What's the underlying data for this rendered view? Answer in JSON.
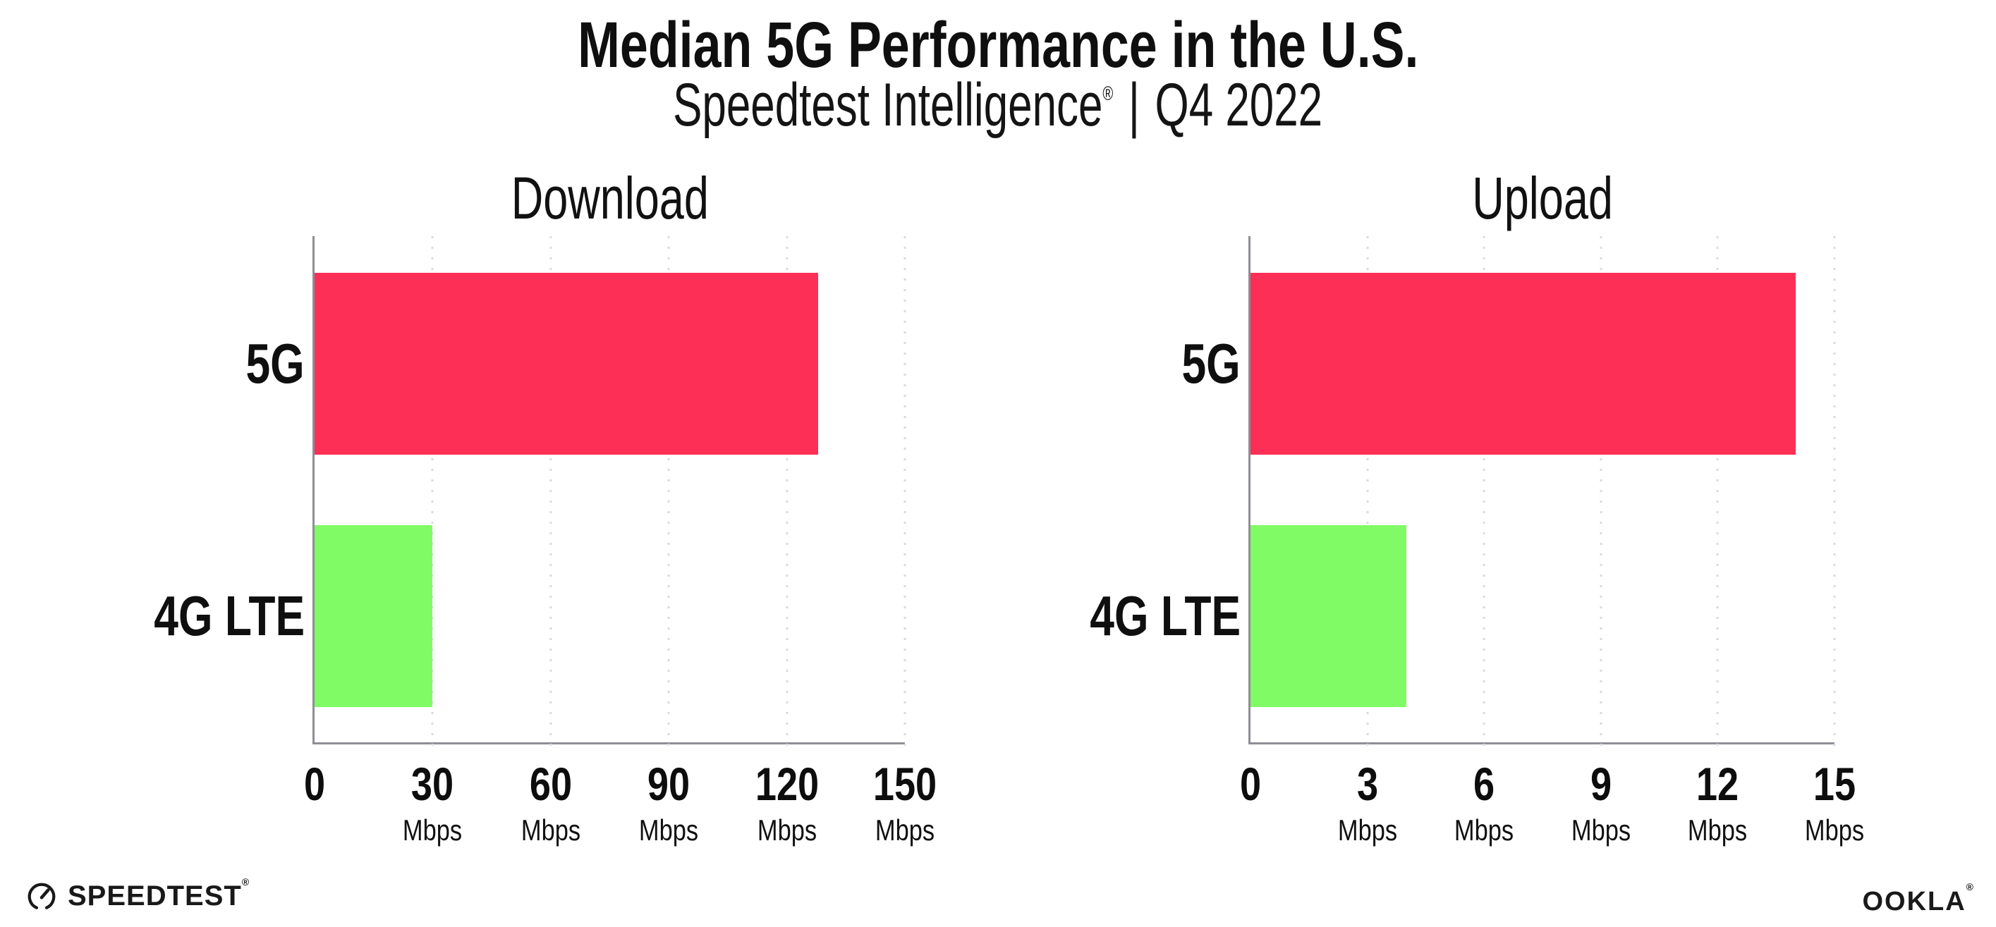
{
  "header": {
    "title": "Median 5G Performance in the U.S.",
    "subtitle_brand": "Speedtest Intelligence",
    "subtitle_reg": "®",
    "subtitle_pipe": "|",
    "subtitle_period": "Q4 2022"
  },
  "chart_data": [
    {
      "type": "bar",
      "orientation": "horizontal",
      "title": "Download",
      "categories": [
        "5G",
        "4G LTE"
      ],
      "values": [
        128,
        30
      ],
      "unit": "Mbps",
      "xlim": [
        0,
        150
      ],
      "ticks": [
        0,
        30,
        60,
        90,
        120,
        150
      ],
      "bar_colors": [
        "#fd2f57",
        "#80fa65"
      ],
      "grid": "dotted vertical gridlines",
      "legend": "none",
      "xlabel": "",
      "ylabel": ""
    },
    {
      "type": "bar",
      "orientation": "horizontal",
      "title": "Upload",
      "categories": [
        "5G",
        "4G LTE"
      ],
      "values": [
        14,
        4
      ],
      "unit": "Mbps",
      "xlim": [
        0,
        15
      ],
      "ticks": [
        0,
        3,
        6,
        9,
        12,
        15
      ],
      "bar_colors": [
        "#fd2f57",
        "#80fa65"
      ],
      "grid": "dotted vertical gridlines",
      "legend": "none",
      "xlabel": "",
      "ylabel": ""
    }
  ],
  "footer": {
    "speedtest_logo_text": "SPEEDTEST",
    "speedtest_reg": "®",
    "ookla_logo_text": "OOKLA",
    "ookla_reg": "®"
  },
  "colors": {
    "bar_5g": "#fd2f57",
    "bar_4g_lte": "#80fa65",
    "axis": "#8e8e96",
    "gridline": "#d9dae6",
    "text": "#0f0f0f",
    "background": "#ffffff"
  }
}
